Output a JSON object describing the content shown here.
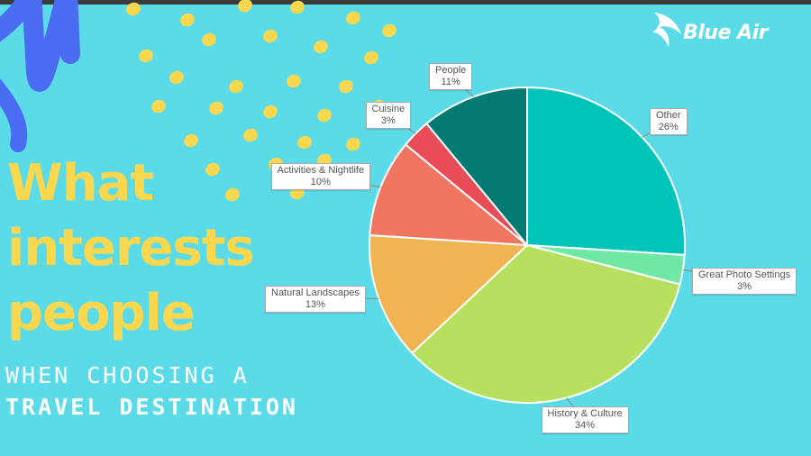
{
  "headline": [
    "What",
    "interests",
    "people"
  ],
  "subtitle_line1": "WHEN CHOOSING A",
  "subtitle_line2": "TRAVEL DESTINATION",
  "brand": "Blue Air",
  "colors": {
    "background": "#5bdbe8",
    "headline": "#f9d84f",
    "dots": "#f9d84f",
    "scribble": "#4a6cf2"
  },
  "chart_data": {
    "type": "pie",
    "slices": [
      {
        "label": "Other",
        "value": 26,
        "display": "26%",
        "color": "#00c4b9"
      },
      {
        "label": "Great Photo Settings",
        "value": 3,
        "display": "3%",
        "color": "#6ee8a2"
      },
      {
        "label": "History & Culture",
        "value": 34,
        "display": "34%",
        "color": "#b6e05e"
      },
      {
        "label": "Natural Landscapes",
        "value": 13,
        "display": "13%",
        "color": "#f0b452"
      },
      {
        "label": "Activities & Nightlife",
        "value": 10,
        "display": "10%",
        "color": "#f07661"
      },
      {
        "label": "Cuisine",
        "value": 3,
        "display": "3%",
        "color": "#e84c57"
      },
      {
        "label": "People",
        "value": 11,
        "display": "11%",
        "color": "#027a72"
      }
    ],
    "start": "12 o'clock",
    "direction": "clockwise"
  }
}
